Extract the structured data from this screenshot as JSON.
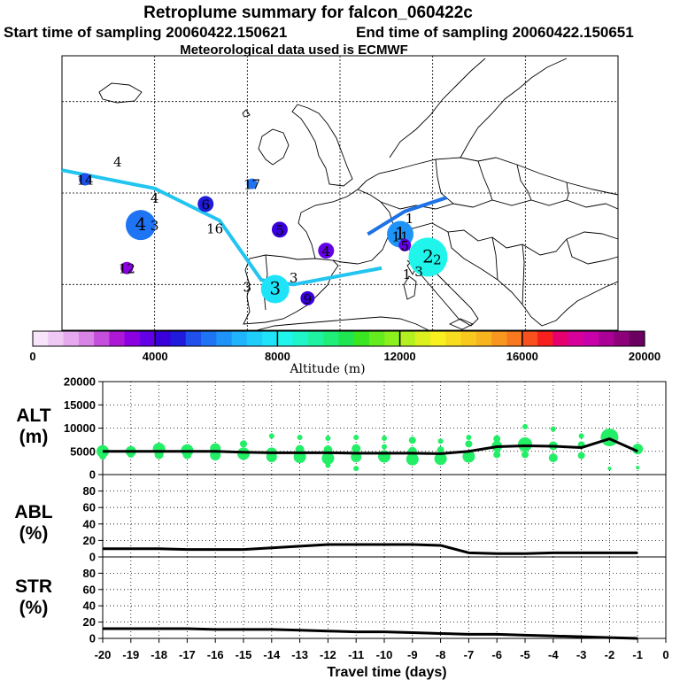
{
  "chart_data": [
    {
      "type": "map",
      "title": "Retroplume summary for falcon_060422c",
      "start_label": "Start time of sampling 20060422.150621",
      "end_label": "End time of sampling 20060422.150651",
      "met_label": "Meteorological data used is ECMWF",
      "lon_gridlines": [
        -20,
        -10,
        0,
        10,
        20,
        30
      ],
      "lat_gridlines": [
        30,
        40,
        50,
        60
      ],
      "track_light": [
        [
          -30,
          52.5
        ],
        [
          -20,
          50.5
        ],
        [
          -13,
          47
        ],
        [
          -8.5,
          40.5
        ],
        [
          -5,
          40
        ],
        [
          4.5,
          41.8
        ]
      ],
      "track_dark": [
        [
          3,
          45.5
        ],
        [
          7,
          48
        ],
        [
          11.5,
          49.5
        ]
      ],
      "plumes": [
        {
          "label": "4",
          "lon": -21.5,
          "lat": 46.5,
          "alt": 5600,
          "r": 17
        },
        {
          "label": "4",
          "lon": -24,
          "lat": 53.5,
          "alt": 0,
          "r": 0
        },
        {
          "label": "14",
          "lon": -27.5,
          "lat": 51.5,
          "alt": 5200,
          "r": 7
        },
        {
          "label": "4",
          "lon": -20,
          "lat": 49.5,
          "alt": 0,
          "r": 0
        },
        {
          "label": "3",
          "lon": -20,
          "lat": 46.5,
          "alt": 0,
          "r": 0
        },
        {
          "label": "6",
          "lon": -14.5,
          "lat": 48.8,
          "alt": 4500,
          "r": 9
        },
        {
          "label": "16",
          "lon": -13.5,
          "lat": 46.2,
          "alt": 0,
          "r": 0
        },
        {
          "label": "17",
          "lon": -9.5,
          "lat": 51,
          "alt": 5800,
          "r": 6
        },
        {
          "label": "12",
          "lon": -23,
          "lat": 41.8,
          "alt": 3300,
          "r": 7
        },
        {
          "label": "5",
          "lon": -6.5,
          "lat": 46,
          "alt": 4100,
          "r": 9
        },
        {
          "label": "4",
          "lon": -1.5,
          "lat": 43.7,
          "alt": 3900,
          "r": 9
        },
        {
          "label": "3",
          "lon": -7,
          "lat": 39.5,
          "alt": 7700,
          "r": 16
        },
        {
          "label": "3",
          "lon": -10,
          "lat": 39.8,
          "alt": 0,
          "r": 0
        },
        {
          "label": "3",
          "lon": -5,
          "lat": 40.8,
          "alt": 0,
          "r": 0
        },
        {
          "label": "9",
          "lon": -3.5,
          "lat": 38.5,
          "alt": 4300,
          "r": 8
        },
        {
          "label": "1",
          "lon": 6.5,
          "lat": 45.5,
          "alt": 6300,
          "r": 15
        },
        {
          "label": "11",
          "lon": 6.5,
          "lat": 45.3,
          "alt": 0,
          "r": 0
        },
        {
          "label": "1",
          "lon": 7.5,
          "lat": 47.3,
          "alt": 0,
          "r": 0
        },
        {
          "label": "5",
          "lon": 7,
          "lat": 44.3,
          "alt": 3600,
          "r": 7
        },
        {
          "label": "2",
          "lon": 9.5,
          "lat": 43,
          "alt": 8400,
          "r": 22
        },
        {
          "label": "2",
          "lon": 10.5,
          "lat": 42.8,
          "alt": 0,
          "r": 0
        },
        {
          "label": "1",
          "lon": 7.2,
          "lat": 41.2,
          "alt": 0,
          "r": 0
        },
        {
          "label": "3",
          "lon": 8.5,
          "lat": 41.5,
          "alt": 0,
          "r": 0
        }
      ]
    },
    {
      "type": "colorbar",
      "xlabel": "Altitude (m)",
      "range": [
        0,
        20000
      ],
      "tick_labels": [
        "0",
        "4000",
        "8000",
        "12000",
        "16000",
        "20000"
      ],
      "colors": [
        "#f7e3fa",
        "#f0c8f4",
        "#e6a9ee",
        "#d883e6",
        "#c54fdc",
        "#ad17d6",
        "#8a00e0",
        "#6400e6",
        "#3a00dc",
        "#1f1adc",
        "#1f50ec",
        "#1f74f4",
        "#1f94f8",
        "#1fb4fb",
        "#1fcdfb",
        "#1fe3f8",
        "#1ff5ea",
        "#1ff5c8",
        "#1ff2a0",
        "#1fef78",
        "#1fe650",
        "#3ae61f",
        "#64ec1f",
        "#8cf01f",
        "#b4f01f",
        "#dcf01f",
        "#f8f01f",
        "#f8dc1f",
        "#f8c81f",
        "#f8b41f",
        "#f8961f",
        "#f8781f",
        "#f8501f",
        "#f81f1f",
        "#e6006e",
        "#d8009a",
        "#c800aa",
        "#aa0096",
        "#8c007a",
        "#6c0060"
      ]
    },
    {
      "type": "scatter+line",
      "ylabel": "ALT\n(m)",
      "ylabel_lines": [
        "ALT",
        "(m)"
      ],
      "ylim": [
        0,
        20000
      ],
      "y_ticks": [
        "0",
        "5000",
        "10000",
        "15000",
        "20000"
      ],
      "x": [
        -20,
        -19,
        -18,
        -17,
        -16,
        -15,
        -14,
        -13,
        -12,
        -11,
        -10,
        -9,
        -8,
        -7,
        -6,
        -5,
        -4,
        -3,
        -2,
        -1
      ],
      "line": [
        5000,
        5000,
        5000,
        5000,
        5000,
        4800,
        4700,
        4700,
        4700,
        4600,
        4600,
        4600,
        4500,
        5000,
        6000,
        6200,
        6100,
        5800,
        7700,
        5000
      ],
      "points": [
        [
          -20,
          5000,
          7
        ],
        [
          -20,
          4000,
          4
        ],
        [
          -19,
          5000,
          6
        ],
        [
          -19,
          4400,
          4
        ],
        [
          -18,
          5500,
          7
        ],
        [
          -18,
          4300,
          5
        ],
        [
          -17,
          5200,
          7
        ],
        [
          -17,
          4300,
          5
        ],
        [
          -16,
          5600,
          6
        ],
        [
          -16,
          4200,
          6
        ],
        [
          -15,
          6600,
          4
        ],
        [
          -15,
          4500,
          7
        ],
        [
          -14,
          8300,
          3
        ],
        [
          -14,
          4700,
          6
        ],
        [
          -14,
          3800,
          6
        ],
        [
          -13,
          8000,
          3
        ],
        [
          -13,
          5400,
          5
        ],
        [
          -13,
          3800,
          7
        ],
        [
          -12,
          7800,
          3
        ],
        [
          -12,
          5300,
          5
        ],
        [
          -12,
          3500,
          7
        ],
        [
          -12,
          2000,
          3
        ],
        [
          -11,
          8000,
          3
        ],
        [
          -11,
          5600,
          5
        ],
        [
          -11,
          3800,
          6
        ],
        [
          -11,
          1300,
          3
        ],
        [
          -10,
          7800,
          3
        ],
        [
          -10,
          6000,
          3
        ],
        [
          -10,
          3900,
          7
        ],
        [
          -9,
          7400,
          4
        ],
        [
          -9,
          5000,
          5
        ],
        [
          -9,
          3300,
          7
        ],
        [
          -8,
          7200,
          3
        ],
        [
          -8,
          5300,
          4
        ],
        [
          -8,
          3400,
          7
        ],
        [
          -7,
          8000,
          3
        ],
        [
          -7,
          6600,
          4
        ],
        [
          -7,
          3900,
          7
        ],
        [
          -6,
          7700,
          4
        ],
        [
          -6,
          6100,
          6
        ],
        [
          -6,
          4300,
          4
        ],
        [
          -5,
          10300,
          3
        ],
        [
          -5,
          6500,
          8
        ],
        [
          -5,
          4300,
          4
        ],
        [
          -4,
          9800,
          3
        ],
        [
          -4,
          6200,
          5
        ],
        [
          -4,
          3600,
          5
        ],
        [
          -3,
          8300,
          3
        ],
        [
          -3,
          6400,
          4
        ],
        [
          -3,
          4100,
          4
        ],
        [
          -2,
          8000,
          10
        ],
        [
          -2,
          1300,
          2
        ],
        [
          -1,
          5500,
          6
        ],
        [
          -1,
          1500,
          2
        ]
      ]
    },
    {
      "type": "line",
      "ylabel": "ABL\n(%)",
      "ylabel_lines": [
        "ABL",
        "(%)"
      ],
      "ylim": [
        0,
        100
      ],
      "y_ticks": [
        "0",
        "20",
        "40",
        "60",
        "80"
      ],
      "x": [
        -20,
        -19,
        -18,
        -17,
        -16,
        -15,
        -14,
        -13,
        -12,
        -11,
        -10,
        -9,
        -8,
        -7,
        -6,
        -5,
        -4,
        -3,
        -2,
        -1
      ],
      "values": [
        10,
        10,
        10,
        9,
        9,
        9,
        11,
        13,
        15,
        15,
        15,
        15,
        14,
        5,
        4,
        4,
        5,
        5,
        5,
        5
      ]
    },
    {
      "type": "line",
      "ylabel": "STR\n(%)",
      "ylabel_lines": [
        "STR",
        "(%)"
      ],
      "ylim": [
        0,
        100
      ],
      "y_ticks": [
        "0",
        "20",
        "40",
        "60",
        "80"
      ],
      "x": [
        -20,
        -19,
        -18,
        -17,
        -16,
        -15,
        -14,
        -13,
        -12,
        -11,
        -10,
        -9,
        -8,
        -7,
        -6,
        -5,
        -4,
        -3,
        -2,
        -1
      ],
      "values": [
        12,
        12,
        12,
        12,
        11,
        11,
        11,
        10,
        9,
        8,
        8,
        7,
        6,
        5,
        5,
        4,
        3,
        2,
        1,
        0
      ],
      "xlabel": "Travel time (days)",
      "x_ticks": [
        "-20",
        "-19",
        "-18",
        "-17",
        "-16",
        "-15",
        "-14",
        "-13",
        "-12",
        "-11",
        "-10",
        "-9",
        "-8",
        "-7",
        "-6",
        "-5",
        "-4",
        "-3",
        "-2",
        "-1",
        "0"
      ]
    }
  ]
}
